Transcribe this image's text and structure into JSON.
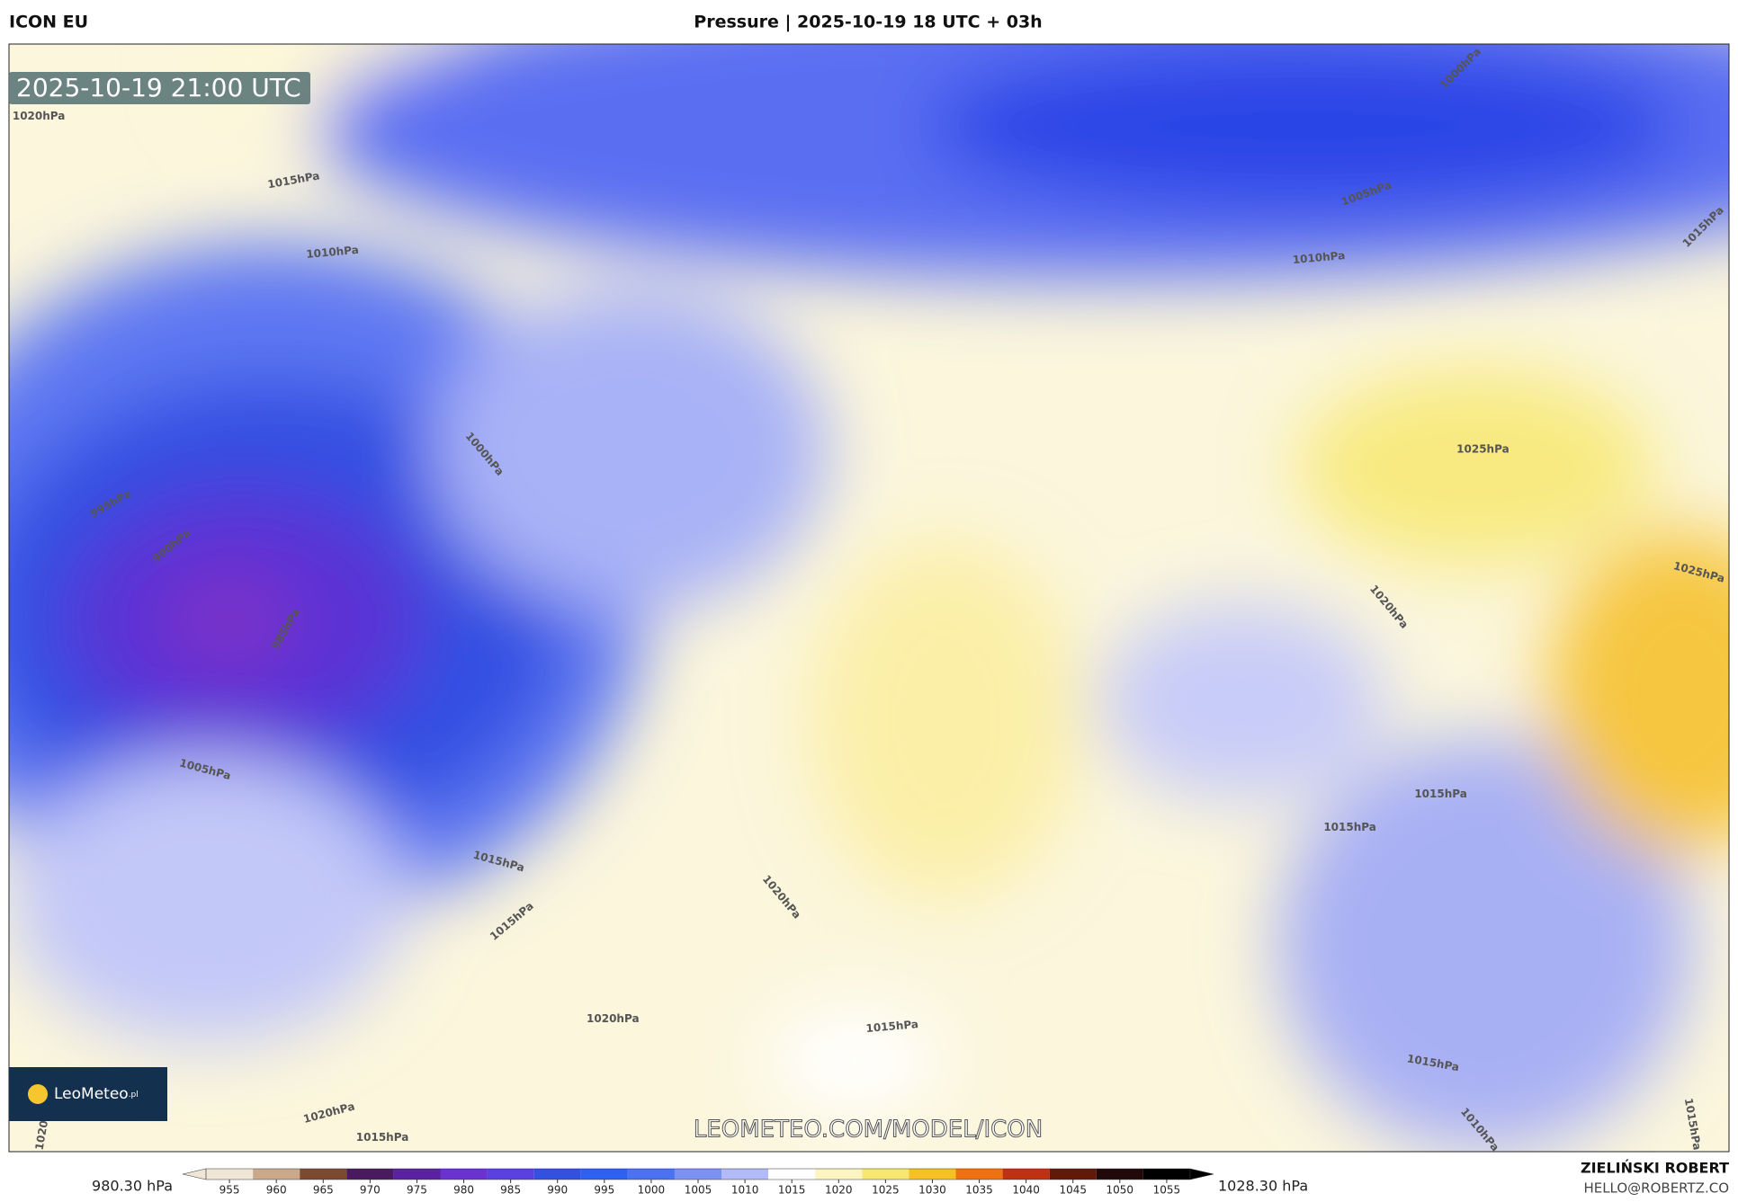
{
  "header": {
    "model": "ICON EU",
    "title": "Pressure | 2025-10-19 18 UTC + 03h"
  },
  "map": {
    "timestamp": "2025-10-19 21:00 UTC",
    "logo": "LeoMeteo",
    "logo_suffix": ".pl",
    "watermark": "LEOMETEO.COM/MODEL/ICON",
    "contour_labels": [
      "1020hPa",
      "1015hPa",
      "1010hPa",
      "995hPa",
      "990hPa",
      "985hPa",
      "1000hPa",
      "1005hPa",
      "1015hPa",
      "1015hPa",
      "1020hPa",
      "1020hPa",
      "1020hPa",
      "1015hPa",
      "1020",
      "1015hPa",
      "1000hPa",
      "1005hPa",
      "1010hPa",
      "1015hPa",
      "1025hPa",
      "1025hPa",
      "1020hPa",
      "1015hPa",
      "1015hPa",
      "1015hPa",
      "1010hPa",
      "1015hPa"
    ]
  },
  "colorbar": {
    "min_label": "980.30 hPa",
    "max_label": "1028.30 hPa",
    "xlim": [
      950,
      1060
    ],
    "ticks": [
      955,
      960,
      965,
      970,
      975,
      980,
      985,
      990,
      995,
      1000,
      1005,
      1010,
      1015,
      1020,
      1025,
      1030,
      1035,
      1040,
      1045,
      1050,
      1055
    ],
    "colors": [
      "#efe6d6",
      "#c9a98a",
      "#7b4a31",
      "#4a1a5e",
      "#5a22a0",
      "#6a32cf",
      "#5a40df",
      "#3350de",
      "#2c62ef",
      "#4b72f0",
      "#7b92f1",
      "#b2baf8",
      "#ffffff",
      "#fcf5c2",
      "#f7e772",
      "#f6c124",
      "#ef7212",
      "#bf3211",
      "#611909",
      "#220909",
      "#000000"
    ]
  },
  "credits": {
    "author": "ZIELIŃSKI ROBERT",
    "email": "HELLO@ROBERTZ.CO"
  }
}
